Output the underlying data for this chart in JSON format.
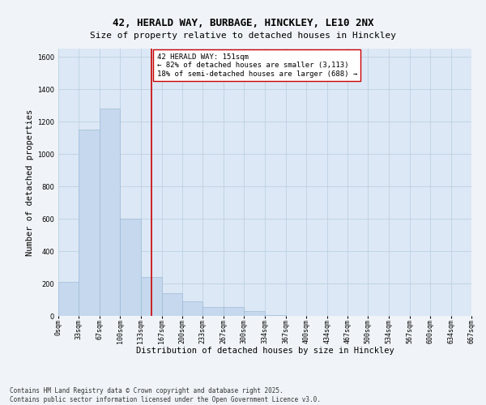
{
  "title1": "42, HERALD WAY, BURBAGE, HINCKLEY, LE10 2NX",
  "title2": "Size of property relative to detached houses in Hinckley",
  "xlabel": "Distribution of detached houses by size in Hinckley",
  "ylabel": "Number of detached properties",
  "bar_color": "#c5d8ed",
  "bar_edgecolor": "#a0bcd8",
  "background_color": "#dce8f5",
  "grid_color": "#b8ccdf",
  "vline_x": 151,
  "vline_color": "#cc0000",
  "annotation_text": "42 HERALD WAY: 151sqm\n← 82% of detached houses are smaller (3,113)\n18% of semi-detached houses are larger (688) →",
  "annotation_box_color": "#ffffff",
  "annotation_box_edgecolor": "#cc0000",
  "bin_edges": [
    0,
    33,
    67,
    100,
    133,
    167,
    200,
    233,
    267,
    300,
    334,
    367,
    400,
    434,
    467,
    500,
    534,
    567,
    600,
    634,
    667
  ],
  "bin_counts": [
    210,
    1150,
    1280,
    600,
    240,
    140,
    90,
    55,
    55,
    30,
    5,
    0,
    0,
    0,
    0,
    0,
    0,
    0,
    0,
    0
  ],
  "ylim": [
    0,
    1650
  ],
  "yticks": [
    0,
    200,
    400,
    600,
    800,
    1000,
    1200,
    1400,
    1600
  ],
  "footnote": "Contains HM Land Registry data © Crown copyright and database right 2025.\nContains public sector information licensed under the Open Government Licence v3.0.",
  "title_fontsize": 9,
  "subtitle_fontsize": 8,
  "tick_fontsize": 6,
  "label_fontsize": 7.5,
  "annotation_fontsize": 6.5,
  "footnote_fontsize": 5.5
}
